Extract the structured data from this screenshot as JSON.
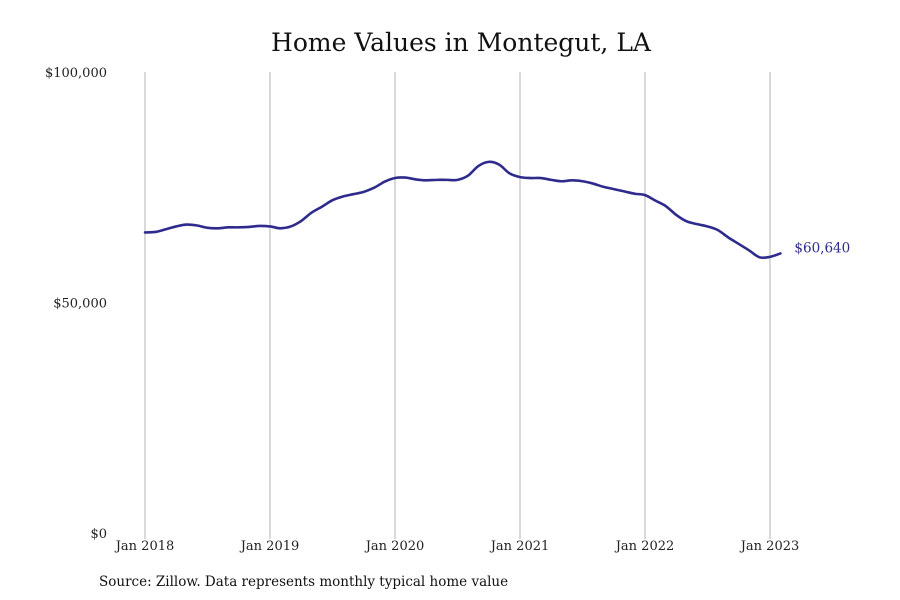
{
  "chart_data": {
    "type": "line",
    "title": "Home Values in Montegut, LA",
    "xlabel": "",
    "ylabel": "",
    "ylim": [
      0,
      100000
    ],
    "y_ticks": [
      {
        "value": 0,
        "label": "$0"
      },
      {
        "value": 50000,
        "label": "$50,000"
      },
      {
        "value": 100000,
        "label": "$100,000"
      }
    ],
    "x_ticks": [
      {
        "value": 2018.0,
        "label": "Jan 2018"
      },
      {
        "value": 2019.0,
        "label": "Jan 2019"
      },
      {
        "value": 2020.0,
        "label": "Jan 2020"
      },
      {
        "value": 2021.0,
        "label": "Jan 2021"
      },
      {
        "value": 2022.0,
        "label": "Jan 2022"
      },
      {
        "value": 2023.0,
        "label": "Jan 2023"
      }
    ],
    "grid": {
      "vertical": true,
      "horizontal": false
    },
    "series": [
      {
        "name": "",
        "color": "#2e2b8c",
        "x": [
          "2018-01",
          "2018-02",
          "2018-03",
          "2018-04",
          "2018-05",
          "2018-06",
          "2018-07",
          "2018-08",
          "2018-09",
          "2018-10",
          "2018-11",
          "2018-12",
          "2019-01",
          "2019-02",
          "2019-03",
          "2019-04",
          "2019-05",
          "2019-06",
          "2019-07",
          "2019-08",
          "2019-09",
          "2019-10",
          "2019-11",
          "2019-12",
          "2020-01",
          "2020-02",
          "2020-03",
          "2020-04",
          "2020-05",
          "2020-06",
          "2020-07",
          "2020-08",
          "2020-09",
          "2020-10",
          "2020-11",
          "2020-12",
          "2021-01",
          "2021-02",
          "2021-03",
          "2021-04",
          "2021-05",
          "2021-06",
          "2021-07",
          "2021-08",
          "2021-09",
          "2021-10",
          "2021-11",
          "2021-12",
          "2022-01",
          "2022-02",
          "2022-03",
          "2022-04",
          "2022-05",
          "2022-06",
          "2022-07",
          "2022-08",
          "2022-09",
          "2022-10",
          "2022-11",
          "2022-12",
          "2023-01",
          "2023-02"
        ],
        "values": [
          65200,
          65300,
          65900,
          66500,
          66900,
          66700,
          66200,
          66100,
          66300,
          66300,
          66400,
          66600,
          66500,
          66100,
          66500,
          67700,
          69500,
          70800,
          72200,
          73000,
          73500,
          74000,
          74900,
          76200,
          77000,
          77100,
          76700,
          76500,
          76600,
          76600,
          76600,
          77500,
          79600,
          80500,
          79900,
          78000,
          77200,
          77000,
          77000,
          76600,
          76300,
          76500,
          76300,
          75800,
          75100,
          74600,
          74100,
          73600,
          73300,
          72100,
          70900,
          69000,
          67600,
          67000,
          66500,
          65700,
          64100,
          62700,
          61300,
          59800,
          59900,
          60640
        ],
        "end_label": "$60,640"
      }
    ]
  },
  "footer": {
    "source": "Source: Zillow. Data represents monthly typical home value"
  }
}
